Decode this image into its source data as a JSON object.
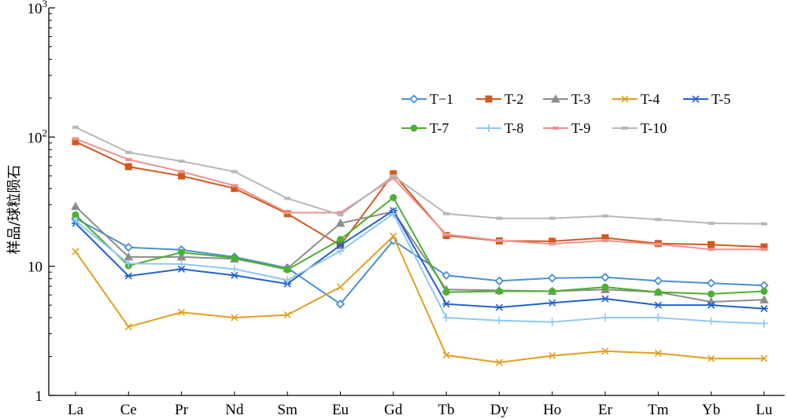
{
  "chart_data": {
    "type": "line",
    "ylabel": "样品/球粒陨石",
    "yscale": "log",
    "ylim": [
      1,
      1000
    ],
    "yticks": [
      {
        "value": 1000,
        "base": "10",
        "exp": "3"
      },
      {
        "value": 100,
        "base": "10",
        "exp": "2"
      },
      {
        "value": 10,
        "base": "10",
        "exp": ""
      },
      {
        "value": 1,
        "base": "1",
        "exp": ""
      }
    ],
    "categories": [
      "La",
      "Ce",
      "Pr",
      "Nd",
      "Sm",
      "Eu",
      "Gd",
      "Tb",
      "Dy",
      "Ho",
      "Er",
      "Tm",
      "Yb",
      "Lu"
    ],
    "legend_position": "top-right",
    "series": [
      {
        "name": "T−1",
        "color": "#4a90d0",
        "marker": "diamond",
        "values": [
          23.5,
          14.0,
          13.4,
          11.8,
          9.7,
          5.1,
          15.8,
          8.5,
          7.7,
          8.1,
          8.2,
          7.7,
          7.4,
          7.1
        ]
      },
      {
        "name": "T-2",
        "color": "#d05a1e",
        "marker": "square",
        "values": [
          92,
          59,
          50,
          40,
          25.5,
          14.5,
          52,
          17.3,
          15.7,
          15.6,
          16.6,
          15.0,
          14.7,
          14.1
        ]
      },
      {
        "name": "T-3",
        "color": "#8c8c8c",
        "marker": "triangle",
        "values": [
          29,
          11.8,
          11.8,
          11.4,
          9.6,
          21.5,
          26.5,
          6.6,
          6.5,
          6.4,
          6.6,
          6.3,
          5.3,
          5.5
        ]
      },
      {
        "name": "T-4",
        "color": "#e0a020",
        "marker": "x",
        "values": [
          13.0,
          3.4,
          4.4,
          4.0,
          4.2,
          6.9,
          17.1,
          2.05,
          1.8,
          2.03,
          2.2,
          2.12,
          1.93,
          1.93
        ]
      },
      {
        "name": "T-5",
        "color": "#2060d0",
        "marker": "star",
        "values": [
          21.5,
          8.4,
          9.5,
          8.5,
          7.3,
          14.5,
          27.0,
          5.1,
          4.8,
          5.2,
          5.6,
          5.0,
          5.0,
          4.7
        ]
      },
      {
        "name": "T-7",
        "color": "#4cb030",
        "marker": "circle",
        "values": [
          25,
          10.1,
          12.8,
          11.6,
          9.4,
          16.1,
          34,
          6.3,
          6.4,
          6.4,
          6.9,
          6.3,
          6.1,
          6.4
        ]
      },
      {
        "name": "T-8",
        "color": "#90c8f0",
        "marker": "plus",
        "values": [
          22.5,
          10.5,
          10.4,
          9.5,
          7.8,
          13.1,
          25.5,
          4.0,
          3.8,
          3.7,
          4.0,
          4.0,
          3.75,
          3.6
        ]
      },
      {
        "name": "T-9",
        "color": "#f09090",
        "marker": "dash",
        "values": [
          97,
          67,
          54,
          42,
          26,
          26,
          48,
          17.6,
          15.8,
          14.9,
          15.8,
          14.8,
          13.5,
          13.5
        ]
      },
      {
        "name": "T-10",
        "color": "#b8b8b8",
        "marker": "dash",
        "values": [
          119,
          76,
          65,
          54,
          33.5,
          25,
          50,
          25.5,
          23.5,
          23.5,
          24.5,
          23.0,
          21.5,
          21.3
        ]
      }
    ]
  }
}
